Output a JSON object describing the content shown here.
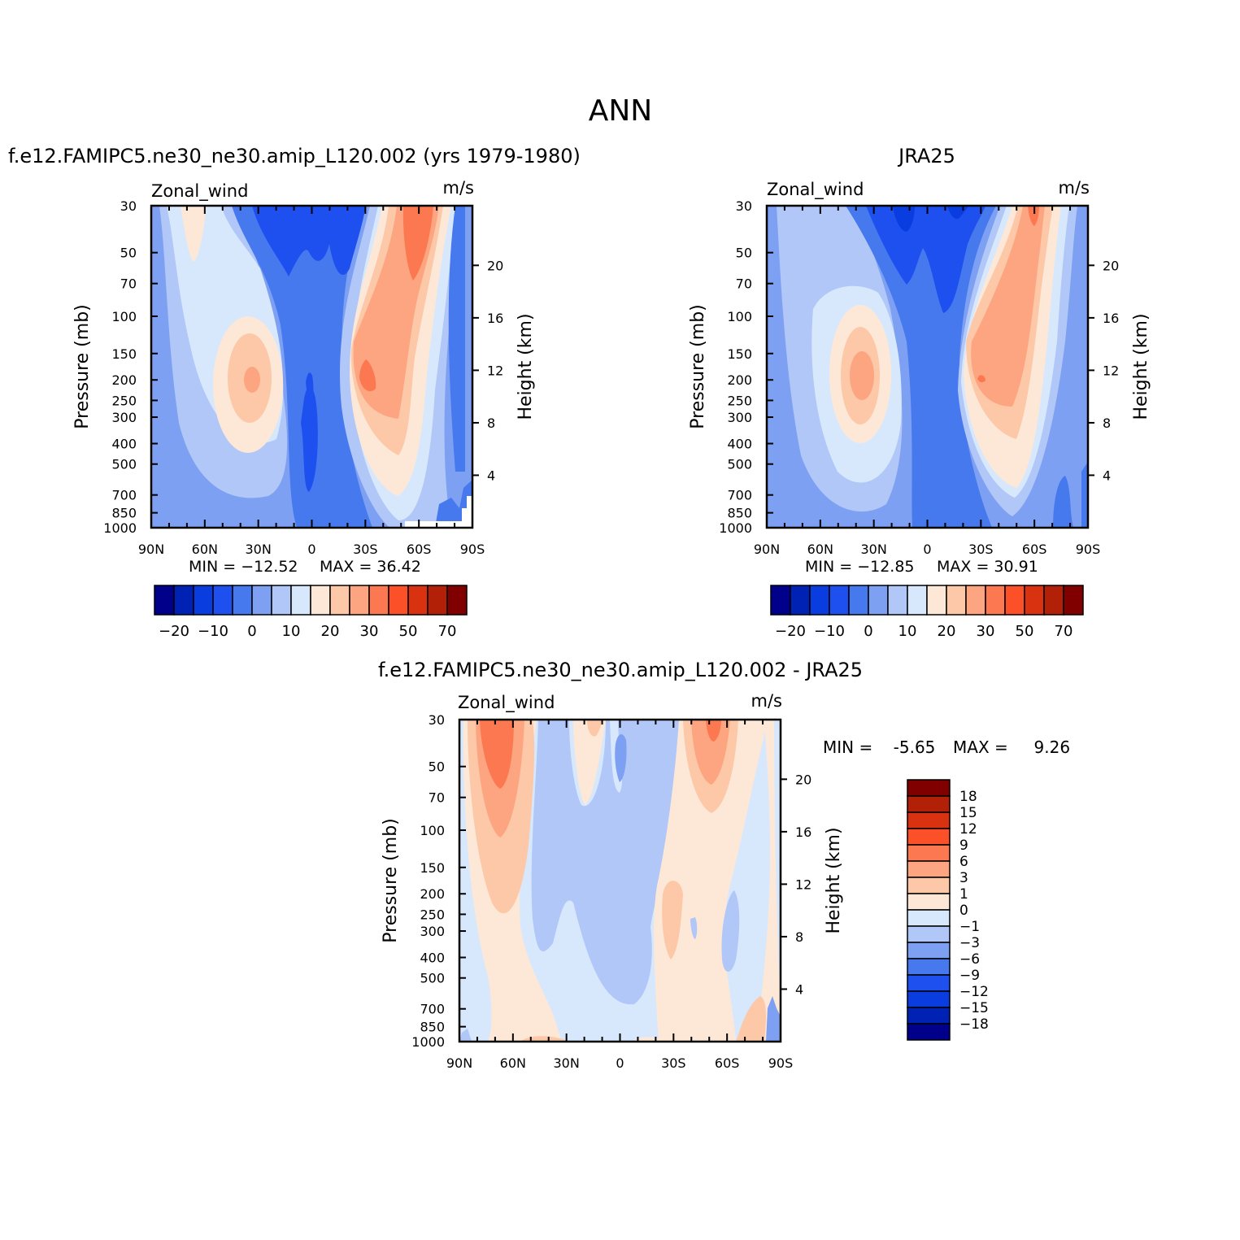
{
  "page_title": "ANN",
  "colors": {
    "levels_main": [
      "#00008b",
      "#0022b4",
      "#0a3de0",
      "#1e50f0",
      "#4678ee",
      "#7ea0f2",
      "#b0c7f8",
      "#d8e8fc",
      "#fde8d8",
      "#fcc8a8",
      "#fca580",
      "#fb7850",
      "#fb5028",
      "#d83210",
      "#b32008",
      "#800000"
    ],
    "levels_diff": [
      "#00008b",
      "#0022b4",
      "#0a3de0",
      "#1e50f0",
      "#4678ee",
      "#7ea0f2",
      "#b0c7f8",
      "#d8e8fc",
      "#fde8d8",
      "#fcc8a8",
      "#fca580",
      "#fb7850",
      "#fb5028",
      "#d83210",
      "#b32008",
      "#800000"
    ]
  },
  "chart_data": [
    {
      "type": "heatmap",
      "title": "f.e12.FAMIPC5.ne30_ne30.amip_L120.002 (yrs 1979-1980)",
      "left_label": "Zonal_wind",
      "right_label": "m/s",
      "ylabel": "Pressure (mb)",
      "ylabel_right": "Height (km)",
      "x_ticks": [
        "90N",
        "60N",
        "30N",
        "0",
        "30S",
        "60S",
        "90S"
      ],
      "y_ticks": [
        "30",
        "50",
        "70",
        "100",
        "150",
        "200",
        "250",
        "300",
        "400",
        "500",
        "700",
        "850",
        "1000"
      ],
      "y_ticks_right": [
        "4",
        "8",
        "12",
        "16",
        "20"
      ],
      "min_label": "MIN =  -12.52",
      "max_label": "MAX =   36.42",
      "colorbar_ticks": [
        "-20",
        "-10",
        "0",
        "10",
        "20",
        "30",
        "50",
        "70"
      ],
      "xlim": [
        -90,
        90
      ],
      "ylim": [
        1000,
        30
      ],
      "yscale": "log"
    },
    {
      "type": "heatmap",
      "title": "JRA25",
      "left_label": "Zonal_wind",
      "right_label": "m/s",
      "ylabel": "Pressure (mb)",
      "ylabel_right": "Height (km)",
      "x_ticks": [
        "90N",
        "60N",
        "30N",
        "0",
        "30S",
        "60S",
        "90S"
      ],
      "y_ticks": [
        "30",
        "50",
        "70",
        "100",
        "150",
        "200",
        "250",
        "300",
        "400",
        "500",
        "700",
        "850",
        "1000"
      ],
      "y_ticks_right": [
        "4",
        "8",
        "12",
        "16",
        "20"
      ],
      "min_label": "MIN =  -12.85",
      "max_label": "MAX =   30.91",
      "colorbar_ticks": [
        "-20",
        "-10",
        "0",
        "10",
        "20",
        "30",
        "50",
        "70"
      ],
      "xlim": [
        -90,
        90
      ],
      "ylim": [
        1000,
        30
      ],
      "yscale": "log"
    },
    {
      "type": "heatmap",
      "title": "f.e12.FAMIPC5.ne30_ne30.amip_L120.002 - JRA25",
      "left_label": "Zonal_wind",
      "right_label": "m/s",
      "ylabel": "Pressure (mb)",
      "ylabel_right": "Height (km)",
      "x_ticks": [
        "90N",
        "60N",
        "30N",
        "0",
        "30S",
        "60S",
        "90S"
      ],
      "y_ticks": [
        "30",
        "50",
        "70",
        "100",
        "150",
        "200",
        "250",
        "300",
        "400",
        "500",
        "700",
        "850",
        "1000"
      ],
      "y_ticks_right": [
        "4",
        "8",
        "12",
        "16",
        "20"
      ],
      "min_label": "MIN =    -5.65",
      "max_label": "MAX =     9.26",
      "colorbar_ticks": [
        "18",
        "15",
        "12",
        "9",
        "6",
        "3",
        "1",
        "0",
        "-1",
        "-3",
        "-6",
        "-9",
        "-12",
        "-15",
        "-18"
      ],
      "xlim": [
        -90,
        90
      ],
      "ylim": [
        1000,
        30
      ],
      "yscale": "log"
    }
  ]
}
